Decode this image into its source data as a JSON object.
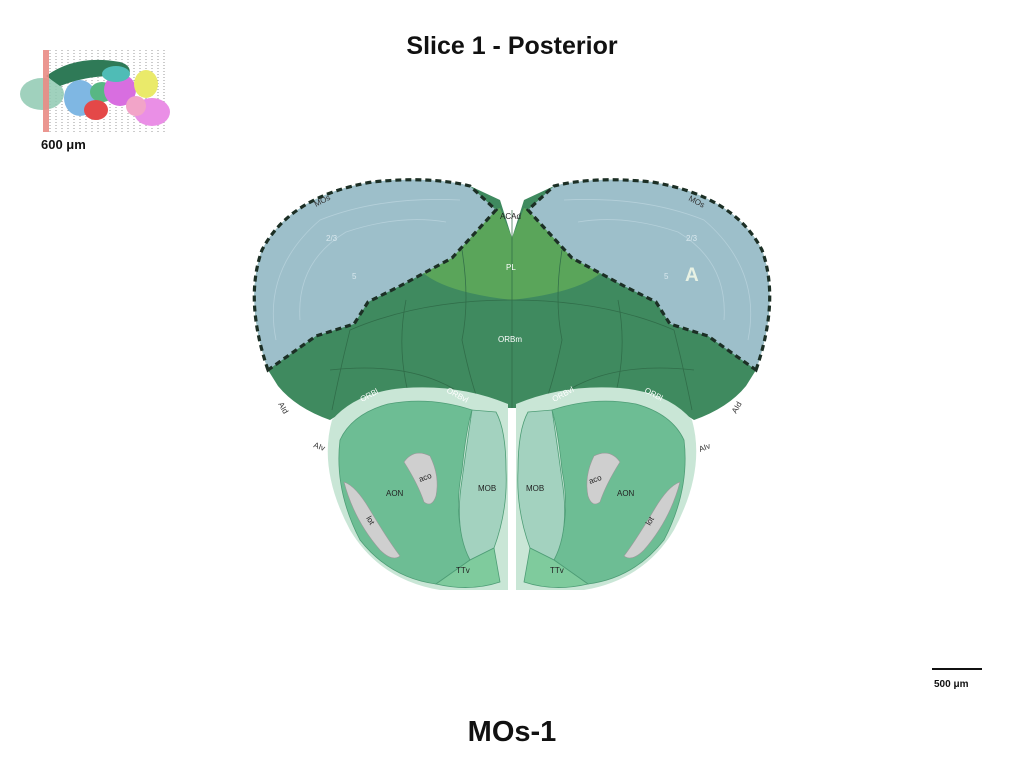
{
  "title": "Slice 1 - Posterior",
  "caption": "MOs-1",
  "thumbnail": {
    "scale_label": "600 μm"
  },
  "scale_bar": {
    "label": "500 μm"
  },
  "marker": "A",
  "regions": {
    "mos": "MOs",
    "acad": "ACAd",
    "pl": "PL",
    "orbm": "ORBm",
    "orbl": "ORBl",
    "orbvl": "ORBvl",
    "aid": "AId",
    "aiv": "AIv",
    "aon": "AON",
    "mob": "MOB",
    "aco": "aco",
    "lot": "lot",
    "ttv": "TTv",
    "layer_23": "2/3",
    "layer_5": "5",
    "layer_1": "1"
  },
  "colors": {
    "mos_fill": "#9dbfca",
    "cortex_dark": "#3f8a5f",
    "pl_green": "#5aa55a",
    "aon_green": "#6dbd94",
    "mob_light": "#a3d2bf",
    "ttv_green": "#7fcb9d",
    "fiber_gray": "#cfcfcf",
    "selection_border": "#1c2f25"
  }
}
